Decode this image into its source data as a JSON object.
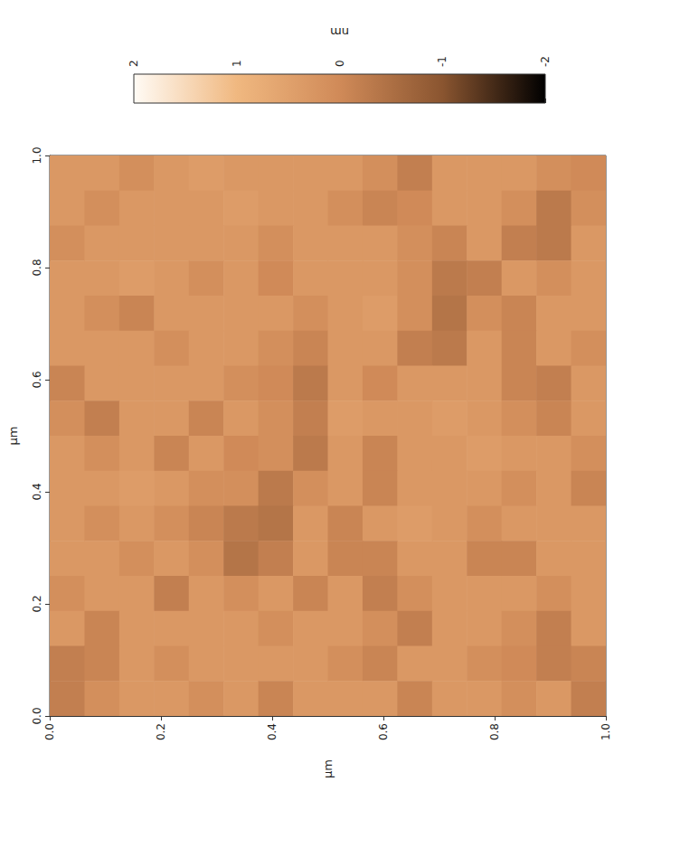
{
  "chart_data": {
    "type": "heatmap",
    "xlabel": "µm",
    "ylabel": "µm",
    "xlim": [
      0,
      1
    ],
    "ylim": [
      0,
      1
    ],
    "xticks": [
      {
        "value": 0,
        "label": "0.0"
      },
      {
        "value": 0.2,
        "label": "0.2"
      },
      {
        "value": 0.4,
        "label": "0.4"
      },
      {
        "value": 0.6,
        "label": "0.6"
      },
      {
        "value": 0.8,
        "label": "0.8"
      },
      {
        "value": 1,
        "label": "1.0"
      }
    ],
    "yticks": [
      {
        "value": 0,
        "label": "0.0"
      },
      {
        "value": 0.2,
        "label": "0.2"
      },
      {
        "value": 0.4,
        "label": "0.4"
      },
      {
        "value": 0.6,
        "label": "0.6"
      },
      {
        "value": 0.8,
        "label": "0.8"
      },
      {
        "value": 1,
        "label": "1.0"
      }
    ],
    "grid": false,
    "cells": [
      [
        0.3,
        0.3,
        0.1,
        0.3,
        0.4,
        0.3,
        0.3,
        0.3,
        0.3,
        0.1,
        -0.2,
        0.3,
        0.3,
        0.3,
        0.1,
        0.0
      ],
      [
        0.3,
        0.1,
        0.3,
        0.3,
        0.3,
        0.4,
        0.3,
        0.3,
        0.1,
        -0.1,
        0.0,
        0.3,
        0.3,
        0.1,
        -0.3,
        0.1
      ],
      [
        0.1,
        0.3,
        0.3,
        0.3,
        0.3,
        0.3,
        0.1,
        0.3,
        0.3,
        0.3,
        0.1,
        -0.1,
        0.3,
        -0.2,
        -0.3,
        0.3
      ],
      [
        0.3,
        0.3,
        0.4,
        0.3,
        0.1,
        0.3,
        0.0,
        0.3,
        0.3,
        0.3,
        0.1,
        -0.3,
        -0.2,
        0.3,
        0.1,
        0.3
      ],
      [
        0.3,
        0.1,
        -0.1,
        0.3,
        0.3,
        0.3,
        0.3,
        0.1,
        0.3,
        0.4,
        0.1,
        -0.4,
        0.1,
        -0.1,
        0.3,
        0.3
      ],
      [
        0.3,
        0.3,
        0.3,
        0.1,
        0.3,
        0.3,
        0.1,
        -0.1,
        0.3,
        0.3,
        -0.2,
        -0.3,
        0.3,
        -0.1,
        0.3,
        0.1
      ],
      [
        -0.1,
        0.3,
        0.3,
        0.3,
        0.3,
        0.1,
        0.0,
        -0.3,
        0.3,
        0.0,
        0.3,
        0.3,
        0.3,
        -0.1,
        -0.2,
        0.3
      ],
      [
        0.1,
        -0.2,
        0.3,
        0.3,
        -0.1,
        0.3,
        0.1,
        -0.2,
        0.4,
        0.3,
        0.3,
        0.4,
        0.3,
        0.1,
        -0.1,
        0.3
      ],
      [
        0.3,
        0.1,
        0.3,
        -0.1,
        0.3,
        0.0,
        0.1,
        -0.3,
        0.3,
        -0.1,
        0.3,
        0.3,
        0.4,
        0.3,
        0.3,
        0.1
      ],
      [
        0.3,
        0.3,
        0.4,
        0.3,
        0.1,
        0.1,
        -0.3,
        0.1,
        0.3,
        -0.1,
        0.3,
        0.3,
        0.3,
        0.1,
        0.3,
        -0.1
      ],
      [
        0.3,
        0.1,
        0.3,
        0.1,
        -0.1,
        -0.3,
        -0.4,
        0.3,
        -0.1,
        0.3,
        0.4,
        0.3,
        0.1,
        0.3,
        0.3,
        0.3
      ],
      [
        0.3,
        0.3,
        0.1,
        0.3,
        0.1,
        -0.4,
        -0.2,
        0.3,
        -0.1,
        -0.1,
        0.3,
        0.3,
        -0.1,
        -0.1,
        0.3,
        0.3
      ],
      [
        0.1,
        0.3,
        0.3,
        -0.2,
        0.3,
        0.1,
        0.3,
        -0.1,
        0.3,
        -0.2,
        0.1,
        0.3,
        0.3,
        0.3,
        0.1,
        0.3
      ],
      [
        0.3,
        -0.1,
        0.3,
        0.3,
        0.3,
        0.3,
        0.1,
        0.3,
        0.3,
        0.1,
        -0.2,
        0.3,
        0.3,
        0.1,
        -0.2,
        0.3
      ],
      [
        -0.2,
        -0.1,
        0.3,
        0.1,
        0.3,
        0.3,
        0.3,
        0.3,
        0.1,
        -0.1,
        0.3,
        0.3,
        0.1,
        0.0,
        -0.2,
        -0.1
      ],
      [
        -0.2,
        0.1,
        0.3,
        0.3,
        0.1,
        0.3,
        -0.1,
        0.3,
        0.3,
        0.3,
        -0.1,
        0.3,
        0.3,
        0.1,
        0.3,
        -0.2
      ]
    ],
    "colorbar": {
      "label": "nm",
      "range": [
        -2,
        2
      ],
      "ticks": [
        2,
        1,
        0,
        -1,
        -2
      ],
      "colors": [
        "#000000",
        "#8a5530",
        "#d08a58",
        "#f0b880",
        "#fffbf5"
      ]
    }
  }
}
